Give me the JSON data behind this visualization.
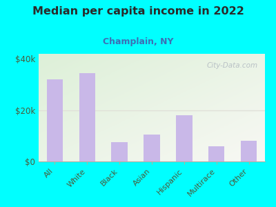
{
  "title": "Median per capita income in 2022",
  "subtitle": "Champlain, NY",
  "categories": [
    "All",
    "White",
    "Black",
    "Asian",
    "Hispanic",
    "Multirace",
    "Other"
  ],
  "values": [
    32000,
    34500,
    7500,
    10500,
    18000,
    6000,
    8000
  ],
  "bar_color": "#c9b8e8",
  "background_outer": "#00FFFF",
  "background_inner_top_left": "#ddf0d8",
  "background_inner_bottom_right": "#f8f8f4",
  "title_color": "#2a2a2a",
  "subtitle_color": "#3d6eb5",
  "axis_label_color": "#4a5a3a",
  "tick_color": "#4a5a3a",
  "ylim": [
    0,
    42000
  ],
  "yticks": [
    0,
    20000,
    40000
  ],
  "ytick_labels": [
    "$0",
    "$20k",
    "$40k"
  ],
  "watermark": "City-Data.com",
  "grid_line_color": "#e0e0d8",
  "spine_color": "#b0b0a0"
}
